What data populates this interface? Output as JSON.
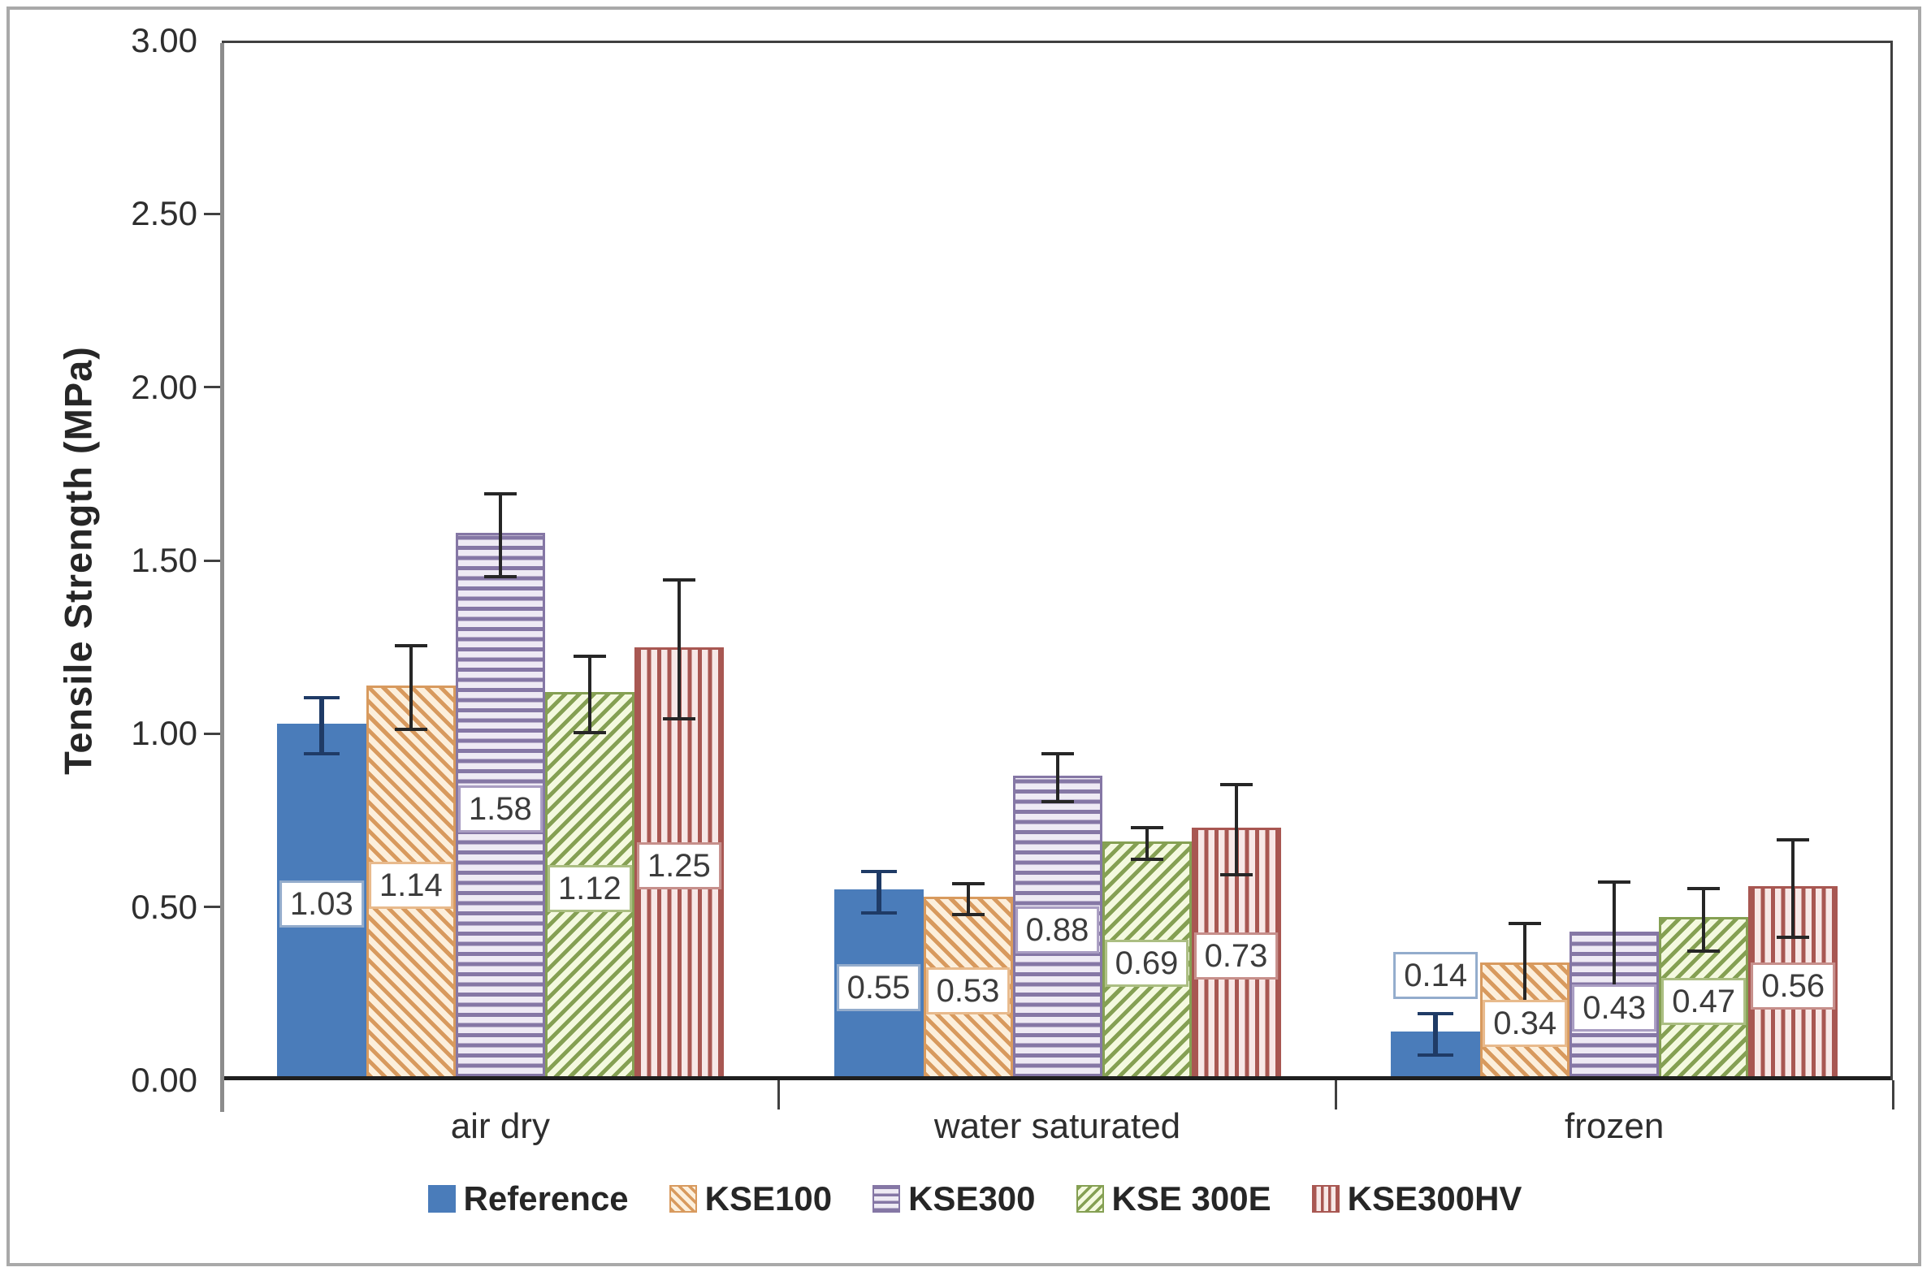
{
  "chart_data": {
    "type": "bar",
    "title": "",
    "ylabel": "Tensile Strength (MPa)",
    "xlabel": "",
    "ylim": [
      0,
      3
    ],
    "ytick_step": 0.5,
    "ytick_labels": [
      "0.00",
      "0.50",
      "1.00",
      "1.50",
      "2.00",
      "2.50",
      "3.00"
    ],
    "grid": false,
    "legend_position": "bottom",
    "categories": [
      "air dry",
      "water saturated",
      "frozen"
    ],
    "series": [
      {
        "name": "Reference",
        "pattern": "solid",
        "color": "#4a7cba",
        "fill": "#4a7cba",
        "label_border": "#93accc",
        "error_color": "#1f3b66",
        "values": [
          1.03,
          0.55,
          0.14
        ],
        "labels": [
          "1.03",
          "0.55",
          "0.14"
        ],
        "errors": [
          0.08,
          0.06,
          0.06
        ],
        "label_pos": [
          "middle",
          "middle",
          "above"
        ]
      },
      {
        "name": "KSE100",
        "pattern": "diagonal-down",
        "color": "#d89a5e",
        "fill": "#fcefdc",
        "label_border": "#e8ba8c",
        "error_color": "#262626",
        "values": [
          1.14,
          0.53,
          0.34
        ],
        "labels": [
          "1.14",
          "0.53",
          "0.34"
        ],
        "errors": [
          0.12,
          0.045,
          0.12
        ],
        "label_pos": [
          "middle",
          "middle",
          "middle"
        ]
      },
      {
        "name": "KSE300",
        "pattern": "horizontal",
        "color": "#8577a5",
        "fill": "#eeeaf4",
        "label_border": "#a99dc2",
        "error_color": "#262626",
        "values": [
          1.58,
          0.88,
          0.43
        ],
        "labels": [
          "1.58",
          "0.88",
          "0.43"
        ],
        "errors": [
          0.12,
          0.07,
          0.15
        ],
        "label_pos": [
          "middle",
          "middle",
          "middle"
        ]
      },
      {
        "name": "KSE 300E",
        "pattern": "diagonal-up",
        "color": "#85a053",
        "fill": "#f4f9df",
        "label_border": "#abbe82",
        "error_color": "#262626",
        "values": [
          1.12,
          0.69,
          0.47
        ],
        "labels": [
          "1.12",
          "0.69",
          "0.47"
        ],
        "errors": [
          0.11,
          0.045,
          0.09
        ],
        "label_pos": [
          "middle",
          "middle",
          "middle"
        ]
      },
      {
        "name": "KSE300HV",
        "pattern": "vertical",
        "color": "#a85752",
        "fill": "#f7e8e7",
        "label_border": "#c68f8b",
        "error_color": "#262626",
        "values": [
          1.25,
          0.73,
          0.56
        ],
        "labels": [
          "1.25",
          "0.73",
          "0.56"
        ],
        "errors": [
          0.2,
          0.13,
          0.14
        ],
        "label_pos": [
          "middle",
          "middle",
          "middle"
        ]
      }
    ]
  }
}
